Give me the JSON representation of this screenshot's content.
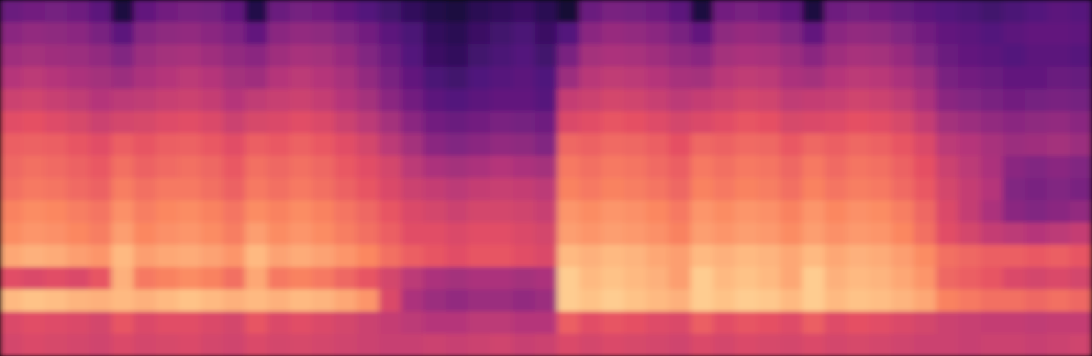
{
  "chart_data": {
    "type": "heatmap",
    "color": "magma",
    "tick_labels": false,
    "zlim": [
      0,
      100
    ],
    "cells": [
      [
        32,
        34,
        35,
        33,
        28,
        12,
        30,
        34,
        36,
        35,
        30,
        14,
        32,
        35,
        34,
        30,
        26,
        22,
        18,
        14,
        12,
        16,
        18,
        20,
        16,
        10,
        32,
        36,
        35,
        33,
        28,
        12,
        34,
        36,
        34,
        30,
        12,
        33,
        35,
        34,
        31,
        28,
        26,
        24,
        22,
        24,
        26,
        28,
        27
      ],
      [
        40,
        42,
        41,
        40,
        36,
        28,
        39,
        41,
        42,
        40,
        37,
        30,
        40,
        42,
        41,
        38,
        34,
        28,
        24,
        18,
        16,
        20,
        22,
        24,
        20,
        26,
        40,
        43,
        42,
        40,
        36,
        30,
        41,
        43,
        42,
        38,
        30,
        40,
        42,
        41,
        38,
        34,
        30,
        28,
        26,
        28,
        30,
        30,
        29
      ],
      [
        45,
        46,
        45,
        44,
        42,
        38,
        44,
        46,
        47,
        45,
        42,
        40,
        45,
        47,
        46,
        43,
        38,
        32,
        26,
        20,
        18,
        22,
        24,
        26,
        22,
        36,
        46,
        48,
        47,
        45,
        42,
        40,
        46,
        48,
        47,
        44,
        40,
        45,
        47,
        46,
        43,
        38,
        32,
        30,
        28,
        26,
        28,
        28,
        27
      ],
      [
        50,
        52,
        50,
        48,
        46,
        44,
        48,
        50,
        52,
        50,
        46,
        45,
        50,
        52,
        50,
        47,
        42,
        36,
        30,
        24,
        22,
        25,
        27,
        28,
        25,
        44,
        51,
        53,
        52,
        50,
        47,
        46,
        51,
        53,
        52,
        48,
        46,
        50,
        52,
        51,
        48,
        44,
        36,
        34,
        32,
        30,
        30,
        32,
        31
      ],
      [
        56,
        57,
        55,
        53,
        50,
        52,
        53,
        55,
        56,
        54,
        50,
        53,
        55,
        56,
        54,
        50,
        46,
        40,
        34,
        28,
        26,
        28,
        30,
        30,
        27,
        54,
        56,
        58,
        57,
        55,
        52,
        54,
        56,
        58,
        57,
        53,
        54,
        55,
        57,
        56,
        53,
        48,
        40,
        38,
        36,
        34,
        35,
        36,
        35
      ],
      [
        62,
        63,
        61,
        59,
        56,
        58,
        59,
        61,
        62,
        60,
        56,
        59,
        60,
        62,
        60,
        56,
        52,
        46,
        40,
        34,
        32,
        34,
        36,
        35,
        33,
        60,
        62,
        64,
        63,
        61,
        58,
        60,
        62,
        64,
        63,
        59,
        60,
        61,
        63,
        62,
        59,
        54,
        46,
        44,
        42,
        40,
        41,
        42,
        40
      ],
      [
        66,
        67,
        66,
        64,
        62,
        66,
        64,
        66,
        67,
        65,
        62,
        66,
        65,
        67,
        65,
        62,
        58,
        52,
        46,
        40,
        38,
        40,
        42,
        41,
        38,
        68,
        67,
        69,
        68,
        66,
        63,
        68,
        67,
        69,
        68,
        65,
        68,
        66,
        68,
        67,
        64,
        60,
        52,
        50,
        47,
        44,
        45,
        46,
        44
      ],
      [
        68,
        70,
        69,
        67,
        65,
        70,
        67,
        69,
        70,
        68,
        65,
        70,
        68,
        70,
        68,
        65,
        62,
        58,
        52,
        48,
        46,
        48,
        50,
        48,
        46,
        72,
        70,
        72,
        71,
        69,
        66,
        72,
        70,
        72,
        71,
        68,
        72,
        69,
        71,
        70,
        67,
        63,
        56,
        52,
        48,
        40,
        38,
        40,
        38
      ],
      [
        70,
        72,
        71,
        69,
        67,
        73,
        70,
        72,
        72,
        70,
        67,
        72,
        70,
        72,
        70,
        67,
        64,
        60,
        56,
        54,
        52,
        54,
        55,
        54,
        52,
        74,
        72,
        74,
        73,
        71,
        68,
        74,
        72,
        74,
        73,
        70,
        74,
        71,
        73,
        72,
        69,
        65,
        58,
        54,
        50,
        38,
        36,
        38,
        36
      ],
      [
        74,
        76,
        75,
        73,
        71,
        77,
        73,
        75,
        76,
        74,
        71,
        76,
        74,
        76,
        74,
        71,
        68,
        64,
        60,
        58,
        56,
        58,
        58,
        57,
        55,
        78,
        76,
        78,
        77,
        75,
        72,
        78,
        76,
        78,
        77,
        74,
        78,
        75,
        77,
        76,
        73,
        68,
        60,
        54,
        48,
        40,
        38,
        40,
        42
      ],
      [
        76,
        78,
        77,
        75,
        73,
        80,
        75,
        77,
        78,
        76,
        73,
        80,
        76,
        78,
        76,
        73,
        70,
        66,
        62,
        62,
        60,
        62,
        62,
        60,
        58,
        80,
        78,
        80,
        79,
        77,
        74,
        80,
        78,
        80,
        79,
        76,
        80,
        77,
        79,
        78,
        75,
        70,
        62,
        58,
        54,
        52,
        50,
        52,
        54
      ],
      [
        82,
        84,
        83,
        80,
        78,
        86,
        80,
        82,
        83,
        81,
        78,
        86,
        81,
        83,
        81,
        78,
        75,
        70,
        66,
        64,
        62,
        64,
        64,
        62,
        60,
        86,
        84,
        86,
        85,
        82,
        80,
        86,
        84,
        86,
        85,
        82,
        86,
        82,
        84,
        83,
        80,
        76,
        70,
        68,
        66,
        66,
        65,
        66,
        64
      ],
      [
        62,
        60,
        62,
        60,
        64,
        84,
        72,
        74,
        76,
        74,
        70,
        82,
        72,
        74,
        72,
        68,
        64,
        58,
        52,
        48,
        46,
        48,
        48,
        46,
        48,
        90,
        86,
        88,
        86,
        84,
        80,
        90,
        86,
        88,
        86,
        82,
        90,
        84,
        86,
        85,
        82,
        78,
        68,
        66,
        64,
        60,
        58,
        60,
        58
      ],
      [
        86,
        88,
        87,
        85,
        84,
        86,
        84,
        86,
        88,
        86,
        84,
        86,
        84,
        86,
        85,
        82,
        78,
        60,
        48,
        44,
        42,
        44,
        44,
        42,
        44,
        90,
        88,
        90,
        88,
        86,
        84,
        90,
        88,
        90,
        89,
        86,
        90,
        86,
        88,
        87,
        85,
        82,
        74,
        72,
        70,
        70,
        68,
        70,
        68
      ],
      [
        60,
        62,
        61,
        60,
        58,
        64,
        60,
        62,
        62,
        60,
        58,
        64,
        60,
        62,
        60,
        58,
        56,
        54,
        52,
        50,
        50,
        52,
        52,
        50,
        50,
        66,
        62,
        64,
        63,
        61,
        60,
        66,
        62,
        64,
        63,
        61,
        66,
        61,
        63,
        62,
        60,
        58,
        56,
        55,
        54,
        54,
        53,
        54,
        54
      ],
      [
        58,
        60,
        59,
        58,
        57,
        60,
        58,
        59,
        60,
        58,
        57,
        60,
        58,
        59,
        58,
        57,
        56,
        55,
        55,
        56,
        55,
        56,
        57,
        55,
        56,
        60,
        58,
        60,
        59,
        58,
        57,
        60,
        58,
        60,
        59,
        58,
        60,
        58,
        59,
        58,
        57,
        56,
        56,
        55,
        56,
        56,
        55,
        56,
        57
      ]
    ]
  }
}
